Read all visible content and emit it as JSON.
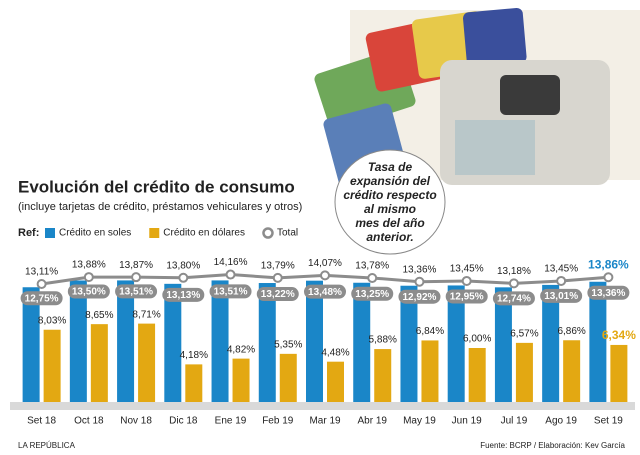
{
  "chart_data": {
    "type": "bar_line",
    "title": "Evolución del crédito de consumo",
    "subtitle": "(incluye tarjetas de crédito, préstamos vehiculares y otros)",
    "legend_title": "Ref:",
    "callout": [
      "Tasa de",
      "expansión del",
      "crédito respecto",
      "al mismo",
      "mes del año",
      "anterior."
    ],
    "categories": [
      "Set 18",
      "Oct 18",
      "Nov 18",
      "Dic 18",
      "Ene 19",
      "Feb 19",
      "Mar 19",
      "Abr 19",
      "May 19",
      "Jun 19",
      "Jul 19",
      "Ago 19",
      "Set 19"
    ],
    "series": [
      {
        "name": "Crédito en soles",
        "color": "#1a86c8",
        "values": [
          12.75,
          13.5,
          13.51,
          13.13,
          13.51,
          13.22,
          13.48,
          13.25,
          12.92,
          12.95,
          12.74,
          13.01,
          13.36
        ],
        "value_labels": [
          "12,75%",
          "13,50%",
          "13,51%",
          "13,13%",
          "13,51%",
          "13,22%",
          "13,48%",
          "13,25%",
          "12,92%",
          "12,95%",
          "12,74%",
          "13,01%",
          "13,36%"
        ]
      },
      {
        "name": "Crédito en dólares",
        "color": "#e3a812",
        "values": [
          8.03,
          8.65,
          8.71,
          4.18,
          4.82,
          5.35,
          4.48,
          5.88,
          6.84,
          6.0,
          6.57,
          6.86,
          6.34
        ],
        "value_labels": [
          "8,03%",
          "8,65%",
          "8,71%",
          "4,18%",
          "4,82%",
          "5,35%",
          "4,48%",
          "5,88%",
          "6,84%",
          "6,00%",
          "6,57%",
          "6,86%",
          "6,34%"
        ]
      },
      {
        "name": "Total",
        "color": "#8c8c8c",
        "type": "line",
        "values": [
          13.11,
          13.88,
          13.87,
          13.8,
          14.16,
          13.79,
          14.07,
          13.78,
          13.36,
          13.45,
          13.18,
          13.45,
          13.86
        ],
        "value_labels": [
          "13,11%",
          "13,88%",
          "13,87%",
          "13,80%",
          "14,16%",
          "13,79%",
          "14,07%",
          "13,78%",
          "13,36%",
          "13,45%",
          "13,18%",
          "13,45%",
          "13,86%"
        ]
      }
    ],
    "source": "Fuente: BCRP / Elaboración: Kev García",
    "publisher": "LA REPÚBLICA"
  }
}
